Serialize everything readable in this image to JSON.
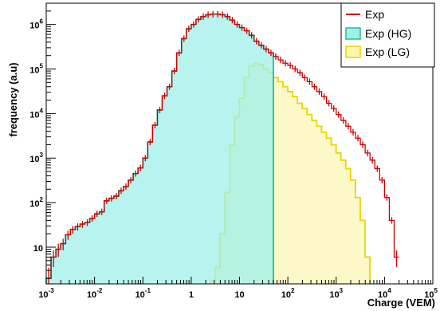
{
  "chart_data": {
    "type": "histogram",
    "title": "",
    "xlabel": "Charge (VEM)",
    "ylabel": "frequency (a.u)",
    "x_scale": "log",
    "y_scale": "log",
    "xlim": [
      0.001,
      100000
    ],
    "ylim": [
      1.5,
      3000000
    ],
    "grid": false,
    "legend_position": "top-right",
    "x_tick_labels": [
      {
        "base": "10",
        "exp": "-3",
        "value": 0.001
      },
      {
        "base": "10",
        "exp": "-2",
        "value": 0.01
      },
      {
        "base": "10",
        "exp": "-1",
        "value": 0.1
      },
      {
        "base": "1",
        "exp": "",
        "value": 1
      },
      {
        "base": "10",
        "exp": "",
        "value": 10
      },
      {
        "base": "10",
        "exp": "2",
        "value": 100
      },
      {
        "base": "10",
        "exp": "3",
        "value": 1000
      },
      {
        "base": "10",
        "exp": "4",
        "value": 10000
      },
      {
        "base": "10",
        "exp": "5",
        "value": 100000
      }
    ],
    "y_tick_labels": [
      {
        "base": "10",
        "exp": "",
        "value": 10
      },
      {
        "base": "10",
        "exp": "2",
        "value": 100
      },
      {
        "base": "10",
        "exp": "3",
        "value": 1000
      },
      {
        "base": "10",
        "exp": "4",
        "value": 10000
      },
      {
        "base": "10",
        "exp": "5",
        "value": 100000
      },
      {
        "base": "10",
        "exp": "6",
        "value": 1000000
      }
    ],
    "bins_per_decade": 10,
    "series": [
      {
        "name": "Exp (HG)",
        "style": "filled-histogram",
        "line_color": "#1fbf9a",
        "fill_color": "#9ff0ea",
        "x_start": 0.001,
        "x_end": 50,
        "values": [
          2,
          6,
          9,
          12,
          19,
          25,
          29,
          33,
          36,
          44,
          56,
          62,
          110,
          125,
          140,
          185,
          230,
          320,
          450,
          600,
          1000,
          2300,
          5500,
          12000,
          25000,
          40000,
          90000,
          230000,
          480000,
          800000,
          1000000,
          1300000,
          1500000,
          1650000,
          1700000,
          1700000,
          1650000,
          1500000,
          1250000,
          1000000,
          850000,
          720000,
          570000,
          420000,
          340000,
          280000,
          230000
        ]
      },
      {
        "name": "Exp (LG)",
        "style": "filled-histogram",
        "line_color": "#e8d600",
        "fill_color": "#fbf6b4",
        "x_start": 2.5,
        "x_end": 6000,
        "values": [
          1.8,
          3.5,
          20,
          170,
          2000,
          8500,
          22000,
          65000,
          115000,
          135000,
          125000,
          100000,
          82000,
          64000,
          52000,
          40000,
          31000,
          24000,
          17000,
          13000,
          9500,
          7000,
          5200,
          3800,
          2800,
          2000,
          1300,
          900,
          580,
          320,
          130,
          40,
          6
        ]
      },
      {
        "name": "Exp",
        "style": "line-with-error-bars",
        "line_color": "#cc0000",
        "x_start": 0.001,
        "x_end": 6000,
        "values": [
          2,
          6,
          9,
          12,
          19,
          25,
          29,
          33,
          36,
          44,
          56,
          62,
          110,
          125,
          140,
          185,
          230,
          320,
          450,
          600,
          1000,
          2300,
          5500,
          12000,
          25000,
          40000,
          90000,
          230000,
          480000,
          800000,
          1000000,
          1300000,
          1500000,
          1650000,
          1700000,
          1700000,
          1650000,
          1500000,
          1250000,
          1000000,
          850000,
          720000,
          570000,
          420000,
          340000,
          280000,
          230000,
          190000,
          160000,
          135000,
          120000,
          100000,
          82000,
          64000,
          52000,
          40000,
          31000,
          24000,
          17000,
          13000,
          9500,
          7000,
          5200,
          3800,
          2800,
          2000,
          1300,
          900,
          580,
          320,
          130,
          40,
          6
        ]
      }
    ]
  }
}
